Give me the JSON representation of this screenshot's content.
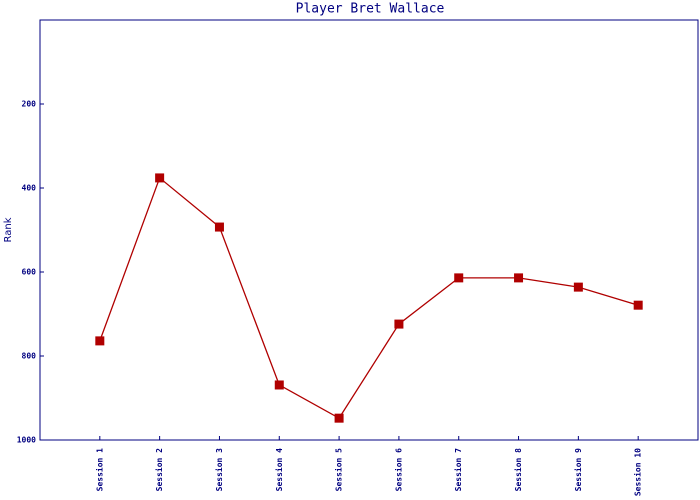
{
  "chart_data": {
    "type": "line",
    "title": "Player Bret Wallace",
    "y_label": "Rank",
    "categories": [
      "Session 1",
      "Session 2",
      "Session 3",
      "Session 4",
      "Session 5",
      "Session 6",
      "Session 7",
      "Session 8",
      "Session 9",
      "Session 10"
    ],
    "series": [
      {
        "name": "Rank",
        "color": "#b00000",
        "values": [
          764,
          376,
          493,
          869,
          948,
          724,
          614,
          614,
          636,
          679
        ]
      }
    ],
    "ylim": [
      0,
      1000
    ],
    "y_reversed": true,
    "yticks": [
      200,
      400,
      600,
      800,
      1000
    ],
    "grid": false,
    "legend": false
  }
}
